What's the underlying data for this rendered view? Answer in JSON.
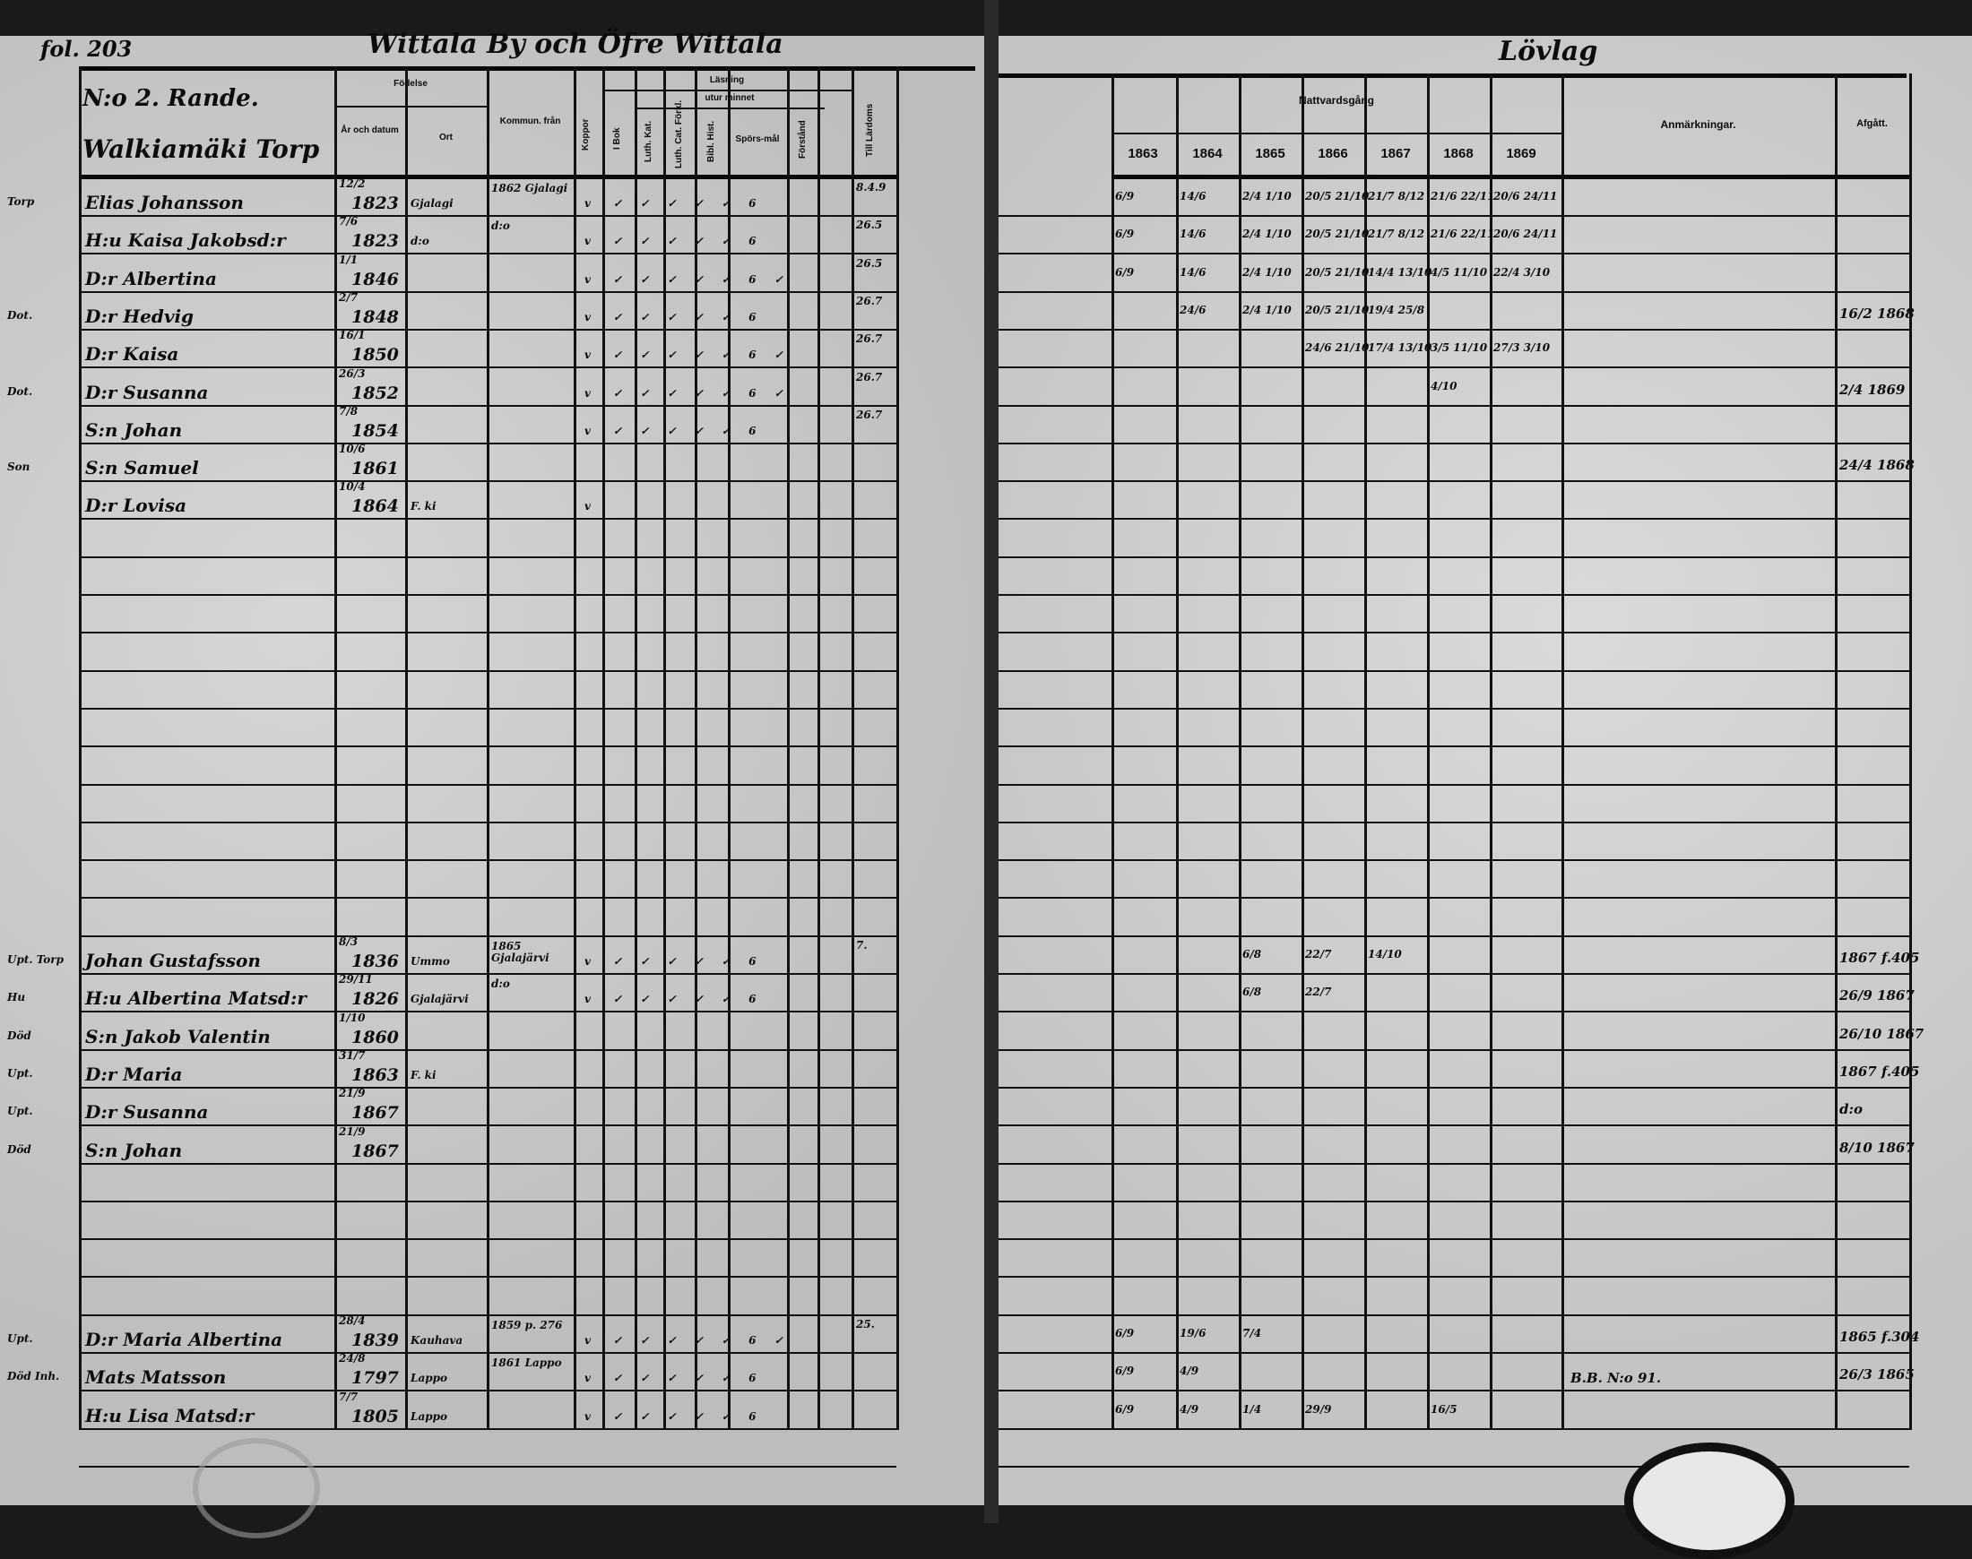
{
  "left_page": {
    "folio": "fol. 203",
    "title": "Wittala By och Öfre Wittala",
    "homestead_no": "N:o 2. Rande.",
    "homestead_name": "Walkiamäki Torp",
    "headers": {
      "birth": "Födelse",
      "year_date": "År och datum",
      "place": "Ort",
      "moved_from": "Kommun. från",
      "smallpox": "Koppor",
      "reading": "Läsning",
      "from_memory": "utur minnet",
      "book": "I Bok",
      "luther_cat": "Luth. Kat.",
      "luth_cat_expl": "Luth. Cat. Förkl.",
      "bible_hist": "Bibl. Hist.",
      "questions": "Spörs-mål",
      "under": "Förstånd",
      "admitted": "Till Lärdoms"
    },
    "rows": [
      {
        "mark": "Torp",
        "name": "Elias Johansson",
        "date": "12/2",
        "year": "1823",
        "place": "Gjalagi",
        "moved": "1862 Gjalagi",
        "kop": "v",
        "reading": "✓ ✓ ✓ ✓ ✓ 6",
        "extra": "8.4.9"
      },
      {
        "mark": "",
        "name": "H:u Kaisa Jakobsd:r",
        "date": "7/6",
        "year": "1823",
        "place": "d:o",
        "moved": "d:o",
        "kop": "v",
        "reading": "✓ ✓ ✓ ✓ ✓ 6",
        "extra": "26.5"
      },
      {
        "mark": "",
        "name": "D:r Albertina",
        "date": "1/1",
        "year": "1846",
        "place": "",
        "moved": "",
        "kop": "v",
        "reading": "✓ ✓ ✓ ✓ ✓ 6 ✓",
        "extra": "26.5"
      },
      {
        "mark": "Dot.",
        "name": "D:r Hedvig",
        "date": "2/7",
        "year": "1848",
        "place": "",
        "moved": "",
        "kop": "v",
        "reading": "✓ ✓ ✓ ✓ ✓ 6",
        "extra": "26.7"
      },
      {
        "mark": "",
        "name": "D:r Kaisa",
        "date": "16/1",
        "year": "1850",
        "place": "",
        "moved": "",
        "kop": "v",
        "reading": "✓ ✓ ✓ ✓ ✓ 6 ✓",
        "extra": "26.7"
      },
      {
        "mark": "Dot.",
        "name": "D:r Susanna",
        "date": "26/3",
        "year": "1852",
        "place": "",
        "moved": "",
        "kop": "v",
        "reading": "✓ ✓ ✓ ✓ ✓ 6 ✓",
        "extra": "26.7"
      },
      {
        "mark": "",
        "name": "S:n Johan",
        "date": "7/8",
        "year": "1854",
        "place": "",
        "moved": "",
        "kop": "v",
        "reading": "✓ ✓ ✓ ✓ ✓ 6",
        "extra": "26.7"
      },
      {
        "mark": "Son",
        "name": "S:n Samuel",
        "date": "10/6",
        "year": "1861",
        "place": "",
        "moved": "",
        "kop": "",
        "reading": "",
        "extra": ""
      },
      {
        "mark": "",
        "name": "D:r Lovisa",
        "date": "10/4",
        "year": "1864",
        "place": "F. ki",
        "moved": "",
        "kop": "v",
        "reading": "",
        "extra": ""
      },
      {},
      {},
      {},
      {},
      {},
      {},
      {},
      {},
      {},
      {},
      {},
      {
        "mark": "Upt. Torp",
        "name": "Johan Gustafsson",
        "date": "8/3",
        "year": "1836",
        "place": "Ummo",
        "moved": "1865 Gjalajärvi",
        "kop": "v",
        "reading": "✓ ✓ ✓ ✓ ✓ 6",
        "extra": "7."
      },
      {
        "mark": "Hu",
        "name": "H:u Albertina Matsd:r",
        "date": "29/11",
        "year": "1826",
        "place": "Gjalajärvi",
        "moved": "d:o",
        "kop": "v",
        "reading": "✓ ✓ ✓ ✓ ✓ 6",
        "extra": ""
      },
      {
        "mark": "Död",
        "name": "S:n Jakob Valentin",
        "date": "1/10",
        "year": "1860",
        "place": "",
        "moved": "",
        "kop": "",
        "reading": "",
        "extra": ""
      },
      {
        "mark": "Upt.",
        "name": "D:r Maria",
        "date": "31/7",
        "year": "1863",
        "place": "F. ki",
        "moved": "",
        "kop": "",
        "reading": "",
        "extra": ""
      },
      {
        "mark": "Upt.",
        "name": "D:r Susanna",
        "date": "21/9",
        "year": "1867",
        "place": "",
        "moved": "",
        "kop": "",
        "reading": "",
        "extra": ""
      },
      {
        "mark": "Död",
        "name": "S:n Johan",
        "date": "21/9",
        "year": "1867",
        "place": "",
        "moved": "",
        "kop": "",
        "reading": "",
        "extra": ""
      },
      {},
      {},
      {},
      {},
      {
        "mark": "Upt.",
        "name": "D:r Maria Albertina",
        "date": "28/4",
        "year": "1839",
        "place": "Kauhava",
        "moved": "1859 p. 276",
        "kop": "v",
        "reading": "✓ ✓ ✓ ✓ ✓ 6 ✓",
        "extra": "25."
      },
      {
        "mark": "Död Inh.",
        "name": "Mats Matsson",
        "date": "24/8",
        "year": "1797",
        "place": "Lappo",
        "moved": "1861 Lappo",
        "kop": "v",
        "reading": "✓ ✓ ✓ ✓ ✓ 6",
        "extra": ""
      },
      {
        "mark": "",
        "name": "H:u Lisa Matsd:r",
        "date": "7/7",
        "year": "1805",
        "place": "Lappo",
        "moved": "",
        "kop": "v",
        "reading": "✓ ✓ ✓ ✓ ✓ 6",
        "extra": ""
      }
    ]
  },
  "right_page": {
    "title": "Lövlag",
    "headers": {
      "communion": "Nattvardsgång",
      "years": [
        "1863",
        "1864",
        "1865",
        "1866",
        "1867",
        "1868",
        "1869"
      ],
      "remarks": "Anmärkningar.",
      "departed": "Afgått."
    },
    "rows": [
      {
        "comm": [
          "6/9",
          "14/6",
          "2/4 1/10",
          "20/5 21/10",
          "21/7 8/12",
          "21/6 22/11",
          "20/6 24/11"
        ]
      },
      {
        "comm": [
          "6/9",
          "14/6",
          "2/4 1/10",
          "20/5 21/10",
          "21/7 8/12",
          "21/6 22/11",
          "20/6 24/11"
        ]
      },
      {
        "comm": [
          "6/9",
          "14/6",
          "2/4 1/10",
          "20/5 21/10",
          "14/4 13/10",
          "4/5 11/10",
          "22/4 3/10"
        ]
      },
      {
        "comm": [
          "",
          "24/6",
          "2/4 1/10",
          "20/5 21/10",
          "19/4 25/8",
          "",
          ""
        ],
        "departed": "16/2 1868"
      },
      {
        "comm": [
          "",
          "",
          "",
          "24/6 21/10",
          "17/4 13/10",
          "3/5 11/10",
          "27/3 3/10"
        ]
      },
      {
        "comm": [
          "",
          "",
          "",
          "",
          "",
          "4/10",
          ""
        ],
        "departed": "2/4 1869"
      },
      {},
      {
        "departed": "24/4 1868"
      },
      {},
      {},
      {},
      {},
      {},
      {},
      {},
      {},
      {},
      {},
      {},
      {},
      {
        "comm": [
          "",
          "",
          "6/8",
          "22/7",
          "14/10",
          "",
          ""
        ],
        "departed": "1867 f.405"
      },
      {
        "comm": [
          "",
          "",
          "6/8",
          "22/7",
          "",
          "",
          ""
        ],
        "departed": "26/9 1867"
      },
      {
        "departed": "26/10 1867"
      },
      {
        "departed": "1867 f.405"
      },
      {
        "departed": "d:o"
      },
      {
        "departed": "8/10 1867"
      },
      {},
      {},
      {},
      {},
      {
        "comm": [
          "6/9",
          "19/6",
          "7/4",
          "",
          "",
          "",
          ""
        ],
        "departed": "1865 f.304"
      },
      {
        "comm": [
          "6/9",
          "4/9",
          "",
          "",
          "",
          "",
          ""
        ],
        "remarks": "B.B. N:o 91.",
        "departed": "26/3 1865"
      },
      {
        "comm": [
          "6/9",
          "4/9",
          "1/4",
          "29/9",
          "",
          "16/5",
          ""
        ]
      }
    ]
  }
}
